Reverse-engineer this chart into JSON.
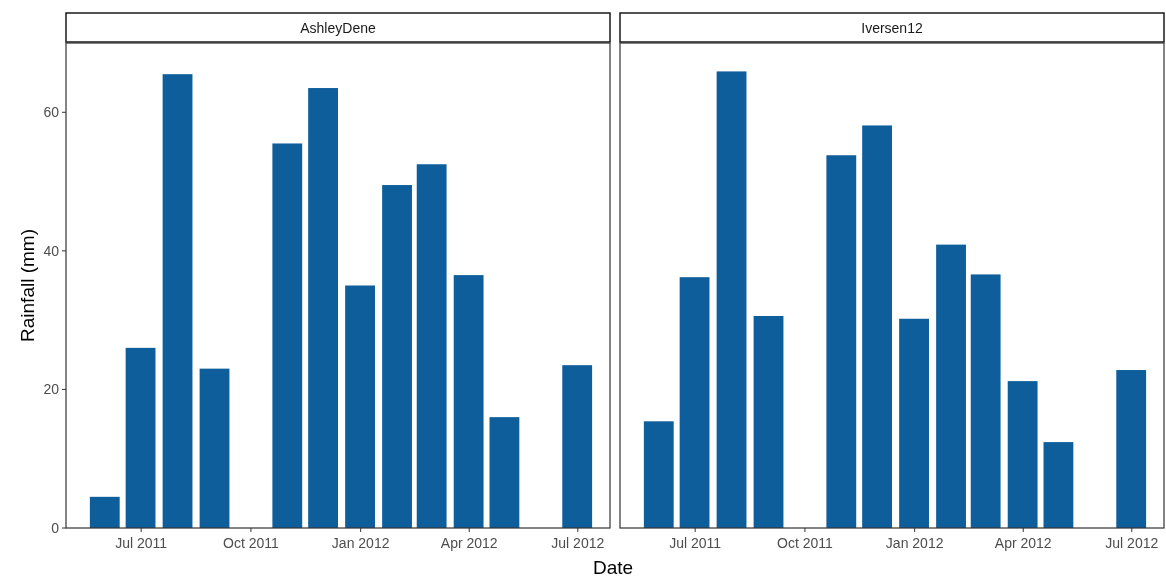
{
  "chart_data": [
    {
      "type": "bar",
      "title": "AshleyDene",
      "xlabel": "Date",
      "ylabel": "Rainfall (mm)",
      "x": [
        "2011-06-01",
        "2011-07-01",
        "2011-08-01",
        "2011-09-01",
        "2011-11-01",
        "2011-12-01",
        "2012-01-01",
        "2012-02-01",
        "2012-03-01",
        "2012-04-01",
        "2012-05-01",
        "2012-07-01"
      ],
      "series": [
        {
          "color": "#0f5e9c",
          "values": [
            4.5,
            26,
            65.5,
            23,
            55.5,
            63.5,
            35,
            49.5,
            52.5,
            36.5,
            16,
            23.5
          ]
        }
      ],
      "xlim": [
        "2011-04-29",
        "2012-07-28"
      ],
      "xticks": [
        {
          "value": "2011-07-01",
          "label": "Jul 2011"
        },
        {
          "value": "2011-10-01",
          "label": "Oct 2011"
        },
        {
          "value": "2012-01-01",
          "label": "Jan 2012"
        },
        {
          "value": "2012-04-01",
          "label": "Apr 2012"
        },
        {
          "value": "2012-07-01",
          "label": "Jul 2012"
        }
      ],
      "ylim": [
        0,
        70
      ],
      "yticks": [
        0,
        20,
        40,
        60
      ],
      "grid": false
    },
    {
      "type": "bar",
      "title": "Iversen12",
      "x": [
        "2011-06-01",
        "2011-07-01",
        "2011-08-01",
        "2011-09-01",
        "2011-11-01",
        "2011-12-01",
        "2012-01-01",
        "2012-02-01",
        "2012-03-01",
        "2012-04-01",
        "2012-05-01",
        "2012-07-01"
      ],
      "series": [
        {
          "color": "#0f5e9c",
          "values": [
            15.4,
            36.2,
            65.9,
            30.6,
            53.8,
            58.1,
            30.2,
            40.9,
            36.6,
            21.2,
            12.4,
            22.8
          ]
        }
      ],
      "xlim": [
        "2011-04-29",
        "2012-07-28"
      ],
      "xticks": [
        {
          "value": "2011-07-01",
          "label": "Jul 2011"
        },
        {
          "value": "2011-10-01",
          "label": "Oct 2011"
        },
        {
          "value": "2012-01-01",
          "label": "Jan 2012"
        },
        {
          "value": "2012-04-01",
          "label": "Apr 2012"
        },
        {
          "value": "2012-07-01",
          "label": "Jul 2012"
        }
      ],
      "ylim": [
        0,
        70
      ],
      "tick_labels": "x",
      "grid": false
    }
  ]
}
